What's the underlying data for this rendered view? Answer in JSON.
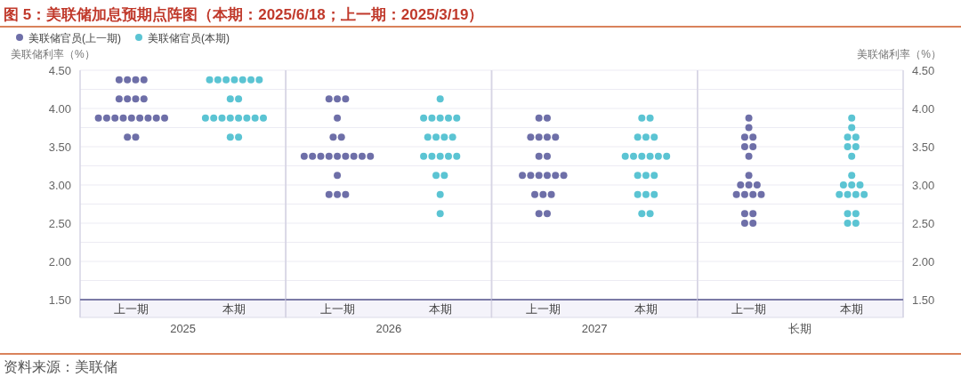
{
  "chart_data": [
    {
      "type": "scatter",
      "title": "图 5：美联储加息预期点阵图（本期：2025/6/18；上一期：2025/3/19）",
      "ylabel": "美联储利率（%）",
      "xlabel": "2025",
      "categories": [
        "上一期",
        "本期"
      ],
      "series": [
        {
          "name": "美联储官员(上一期)",
          "color": "#6e6fa8",
          "x": [
            "上一期",
            "上一期",
            "上一期",
            "上一期",
            "上一期",
            "上一期",
            "上一期",
            "上一期",
            "上一期",
            "上一期",
            "上一期",
            "上一期",
            "上一期",
            "上一期",
            "上一期",
            "上一期",
            "上一期",
            "上一期",
            "上一期"
          ],
          "values": [
            4.375,
            4.375,
            4.375,
            4.375,
            4.125,
            4.125,
            4.125,
            4.125,
            3.875,
            3.875,
            3.875,
            3.875,
            3.875,
            3.875,
            3.875,
            3.875,
            3.875,
            3.625,
            3.625
          ]
        },
        {
          "name": "美联储官员(本期)",
          "color": "#5bc4d3",
          "x": [
            "本期",
            "本期",
            "本期",
            "本期",
            "本期",
            "本期",
            "本期",
            "本期",
            "本期",
            "本期",
            "本期",
            "本期",
            "本期",
            "本期",
            "本期",
            "本期",
            "本期",
            "本期",
            "本期"
          ],
          "values": [
            4.375,
            4.375,
            4.375,
            4.375,
            4.375,
            4.375,
            4.375,
            4.125,
            4.125,
            3.875,
            3.875,
            3.875,
            3.875,
            3.875,
            3.875,
            3.875,
            3.875,
            3.625,
            3.625
          ]
        }
      ],
      "ylim": [
        1.5,
        4.5
      ],
      "yticks": [
        {
          "value": 1.5,
          "label": "1.50"
        },
        {
          "value": 1.75,
          "label": null
        },
        {
          "value": 2,
          "label": "2.00"
        },
        {
          "value": 2.25,
          "label": null
        },
        {
          "value": 2.5,
          "label": "2.50"
        },
        {
          "value": 2.75,
          "label": null
        },
        {
          "value": 3,
          "label": "3.00"
        },
        {
          "value": 3.25,
          "label": null
        },
        {
          "value": 3.5,
          "label": "3.50"
        },
        {
          "value": 3.75,
          "label": null
        },
        {
          "value": 4,
          "label": "4.00"
        },
        {
          "value": 4.25,
          "label": null
        },
        {
          "value": 4.5,
          "label": "4.50"
        }
      ],
      "grid": "y",
      "legend": "top left",
      "marker": "circle",
      "annotations": [
        "资料来源：美联储"
      ]
    },
    {
      "type": "scatter",
      "xlabel": "2026",
      "categories": [
        "上一期",
        "本期"
      ],
      "series": [
        {
          "color": "#6e6fa8",
          "x": [
            "上一期",
            "上一期",
            "上一期",
            "上一期",
            "上一期",
            "上一期",
            "上一期",
            "上一期",
            "上一期",
            "上一期",
            "上一期",
            "上一期",
            "上一期",
            "上一期",
            "上一期",
            "上一期",
            "上一期",
            "上一期",
            "上一期"
          ],
          "values": [
            4.125,
            4.125,
            4.125,
            3.875,
            3.625,
            3.625,
            3.375,
            3.375,
            3.375,
            3.375,
            3.375,
            3.375,
            3.375,
            3.375,
            3.375,
            3.125,
            2.875,
            2.875,
            2.875
          ]
        },
        {
          "color": "#5bc4d3",
          "x": [
            "本期",
            "本期",
            "本期",
            "本期",
            "本期",
            "本期",
            "本期",
            "本期",
            "本期",
            "本期",
            "本期",
            "本期",
            "本期",
            "本期",
            "本期",
            "本期",
            "本期",
            "本期",
            "本期"
          ],
          "values": [
            4.125,
            3.875,
            3.875,
            3.875,
            3.875,
            3.875,
            3.625,
            3.625,
            3.625,
            3.625,
            3.375,
            3.375,
            3.375,
            3.375,
            3.375,
            3.125,
            3.125,
            2.875,
            2.625
          ]
        }
      ],
      "ylim": [
        1.5,
        4.5
      ],
      "yticks": [
        1.5,
        1.75,
        2,
        2.25,
        2.5,
        2.75,
        3,
        3.25,
        3.5,
        3.75,
        4,
        4.25,
        4.5
      ],
      "grid": "y",
      "marker": "circle",
      "tick_labels": "x"
    },
    {
      "type": "scatter",
      "xlabel": "2027",
      "categories": [
        "上一期",
        "本期"
      ],
      "series": [
        {
          "color": "#6e6fa8",
          "x": [
            "上一期",
            "上一期",
            "上一期",
            "上一期",
            "上一期",
            "上一期",
            "上一期",
            "上一期",
            "上一期",
            "上一期",
            "上一期",
            "上一期",
            "上一期",
            "上一期",
            "上一期",
            "上一期",
            "上一期",
            "上一期",
            "上一期"
          ],
          "values": [
            3.875,
            3.875,
            3.625,
            3.625,
            3.625,
            3.625,
            3.375,
            3.375,
            3.125,
            3.125,
            3.125,
            3.125,
            3.125,
            3.125,
            2.875,
            2.875,
            2.875,
            2.625,
            2.625
          ]
        },
        {
          "color": "#5bc4d3",
          "x": [
            "本期",
            "本期",
            "本期",
            "本期",
            "本期",
            "本期",
            "本期",
            "本期",
            "本期",
            "本期",
            "本期",
            "本期",
            "本期",
            "本期",
            "本期",
            "本期",
            "本期",
            "本期",
            "本期"
          ],
          "values": [
            3.875,
            3.875,
            3.625,
            3.625,
            3.625,
            3.375,
            3.375,
            3.375,
            3.375,
            3.375,
            3.375,
            3.125,
            3.125,
            3.125,
            2.875,
            2.875,
            2.875,
            2.625,
            2.625
          ]
        }
      ],
      "ylim": [
        1.5,
        4.5
      ],
      "yticks": [
        1.5,
        1.75,
        2,
        2.25,
        2.5,
        2.75,
        3,
        3.25,
        3.5,
        3.75,
        4,
        4.25,
        4.5
      ],
      "grid": "y",
      "marker": "circle",
      "tick_labels": "x"
    },
    {
      "type": "scatter",
      "xlabel": "长期",
      "y2label": "美联储利率（%）",
      "categories": [
        "上一期",
        "本期"
      ],
      "series": [
        {
          "color": "#6e6fa8",
          "axis": "y2",
          "x": [
            "上一期",
            "上一期",
            "上一期",
            "上一期",
            "上一期",
            "上一期",
            "上一期",
            "上一期",
            "上一期",
            "上一期",
            "上一期",
            "上一期",
            "上一期",
            "上一期",
            "上一期",
            "上一期",
            "上一期",
            "上一期",
            "上一期"
          ],
          "values": [
            3.875,
            3.75,
            3.625,
            3.625,
            3.5,
            3.5,
            3.375,
            3.125,
            3,
            3,
            3,
            2.875,
            2.875,
            2.875,
            2.875,
            2.625,
            2.625,
            2.5,
            2.5
          ]
        },
        {
          "color": "#5bc4d3",
          "axis": "y2",
          "x": [
            "本期",
            "本期",
            "本期",
            "本期",
            "本期",
            "本期",
            "本期",
            "本期",
            "本期",
            "本期",
            "本期",
            "本期",
            "本期",
            "本期",
            "本期",
            "本期",
            "本期",
            "本期",
            "本期"
          ],
          "values": [
            3.875,
            3.75,
            3.625,
            3.625,
            3.5,
            3.5,
            3.375,
            3.125,
            3,
            3,
            3,
            2.875,
            2.875,
            2.875,
            2.875,
            2.625,
            2.625,
            2.5,
            2.5
          ]
        }
      ],
      "y2lim": [
        1.5,
        4.5
      ],
      "y2ticks": [
        {
          "value": 1.5,
          "label": "1.50"
        },
        {
          "value": 1.75,
          "label": null
        },
        {
          "value": 2,
          "label": "2.00"
        },
        {
          "value": 2.25,
          "label": null
        },
        {
          "value": 2.5,
          "label": "2.50"
        },
        {
          "value": 2.75,
          "label": null
        },
        {
          "value": 3,
          "label": "3.00"
        },
        {
          "value": 3.25,
          "label": null
        },
        {
          "value": 3.5,
          "label": "3.50"
        },
        {
          "value": 3.75,
          "label": null
        },
        {
          "value": 4,
          "label": "4.00"
        },
        {
          "value": 4.25,
          "label": null
        },
        {
          "value": 4.5,
          "label": "4.50"
        }
      ],
      "grid": "y",
      "marker": "circle"
    }
  ]
}
